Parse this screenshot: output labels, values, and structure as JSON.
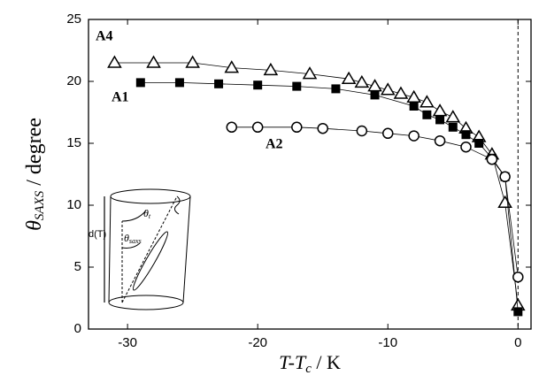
{
  "chart_data": {
    "type": "line",
    "x_label": {
      "main": "T-T",
      "sub": "c",
      "unit": " / K"
    },
    "y_label": {
      "main": "θ",
      "sub": "SAXS",
      "unit": " / degree"
    },
    "xlim": [
      -33,
      1
    ],
    "ylim": [
      0,
      25
    ],
    "xticks": [
      -30,
      -20,
      -10,
      0
    ],
    "yticks": [
      0,
      5,
      10,
      15,
      20,
      25
    ],
    "reference_line_x": 0,
    "series": [
      {
        "name": "A4",
        "color": "#000000",
        "marker": "triangle",
        "x": [
          -31,
          -28,
          -25,
          -22,
          -19,
          -16,
          -13,
          -12,
          -11,
          -10,
          -9,
          -8,
          -7,
          -6,
          -5,
          -4,
          -3,
          -2,
          -1,
          0
        ],
        "values": [
          21.5,
          21.5,
          21.5,
          21.1,
          20.9,
          20.6,
          20.2,
          19.9,
          19.6,
          19.3,
          19.0,
          18.7,
          18.3,
          17.6,
          17.1,
          16.2,
          15.5,
          14.1,
          10.2,
          1.9
        ]
      },
      {
        "name": "A1",
        "color": "#000000",
        "marker": "square",
        "x": [
          -29,
          -26,
          -23,
          -20,
          -17,
          -14,
          -11,
          -8,
          -7,
          -6,
          -5,
          -4,
          -3,
          -2,
          -1,
          0
        ],
        "values": [
          19.9,
          19.9,
          19.8,
          19.7,
          19.6,
          19.4,
          18.9,
          18.0,
          17.3,
          16.9,
          16.3,
          15.7,
          15.0,
          13.8,
          12.3,
          1.4
        ]
      },
      {
        "name": "A2",
        "color": "#000000",
        "marker": "circle",
        "x": [
          -22,
          -20,
          -17,
          -15,
          -12,
          -10,
          -8,
          -6,
          -4,
          -2,
          -1,
          0
        ],
        "values": [
          16.3,
          16.3,
          16.3,
          16.2,
          16.0,
          15.8,
          15.6,
          15.2,
          14.7,
          13.7,
          12.3,
          4.2
        ]
      }
    ],
    "inset_labels": [
      {
        "main": "d(T)"
      },
      {
        "main": "θ",
        "sub": "t"
      },
      {
        "main": "θ",
        "sub": "saxs"
      }
    ]
  }
}
